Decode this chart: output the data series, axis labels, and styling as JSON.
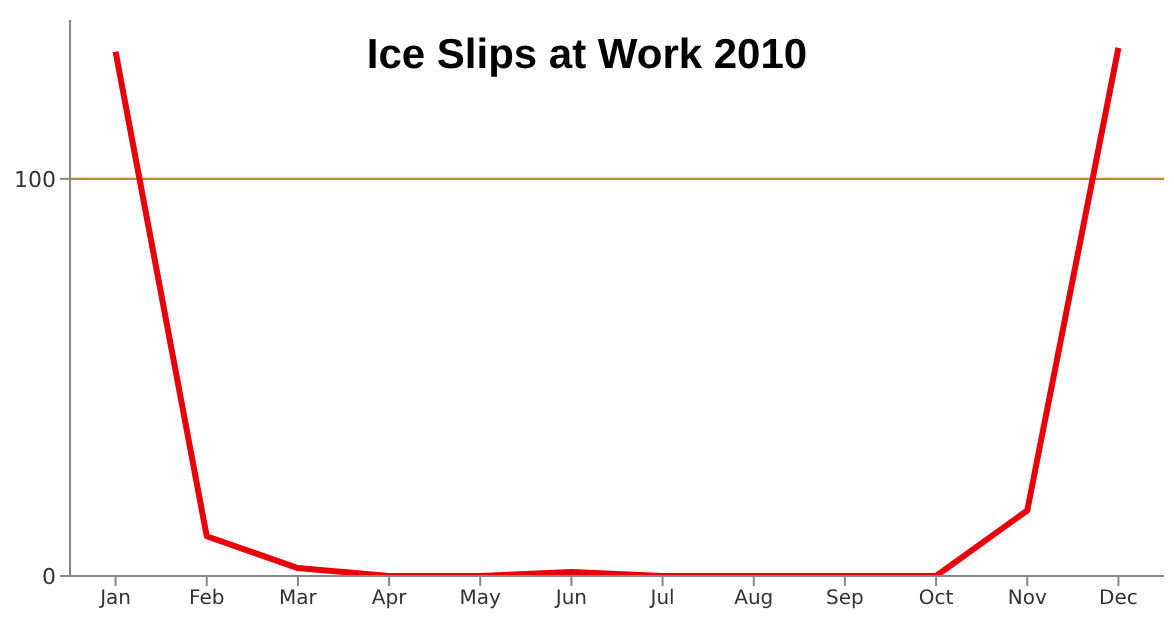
{
  "chart_data": {
    "type": "line",
    "title": "Ice Slips at Work 2010",
    "categories": [
      "Jan",
      "Feb",
      "Mar",
      "Apr",
      "May",
      "Jun",
      "Jul",
      "Aug",
      "Sep",
      "Oct",
      "Nov",
      "Dec"
    ],
    "series": [
      {
        "color": "#e8000b",
        "values": [
          132,
          10,
          2,
          0,
          0,
          1,
          0,
          0,
          0,
          0,
          16.5,
          133
        ]
      }
    ],
    "ylim": [
      0,
      140
    ],
    "yticks": [
      0,
      100
    ],
    "ref_lines": [
      {
        "axis": "y",
        "value": 100,
        "color": "#c8862b"
      }
    ],
    "marker": "none",
    "line_style": "solid"
  }
}
